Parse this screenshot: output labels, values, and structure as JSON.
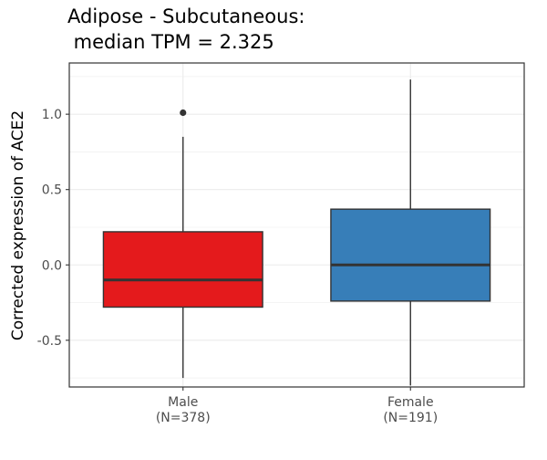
{
  "chart_data": {
    "type": "box",
    "title_lines": [
      "Adipose - Subcutaneous:",
      " median TPM = 2.325"
    ],
    "xlabel": "",
    "ylabel": "Corrected expression of ACE2",
    "ylim": [
      -0.81,
      1.34
    ],
    "y_ticks": [
      -0.5,
      0.0,
      0.5,
      1.0
    ],
    "y_tick_labels": [
      "-0.5",
      "0.0",
      "0.5",
      "1.0"
    ],
    "grid": true,
    "categories": [
      {
        "name": "Male",
        "n_label": "(N=378)"
      },
      {
        "name": "Female",
        "n_label": "(N=191)"
      }
    ],
    "boxes": [
      {
        "category": "Male",
        "color": "#E41A1C",
        "whisker_low": -0.75,
        "q1": -0.28,
        "median": -0.1,
        "q3": 0.22,
        "whisker_high": 0.85,
        "outliers": [
          1.01
        ]
      },
      {
        "category": "Female",
        "color": "#377EB8",
        "whisker_low": -0.8,
        "q1": -0.24,
        "median": 0.0,
        "q3": 0.37,
        "whisker_high": 1.23,
        "outliers": []
      }
    ]
  }
}
